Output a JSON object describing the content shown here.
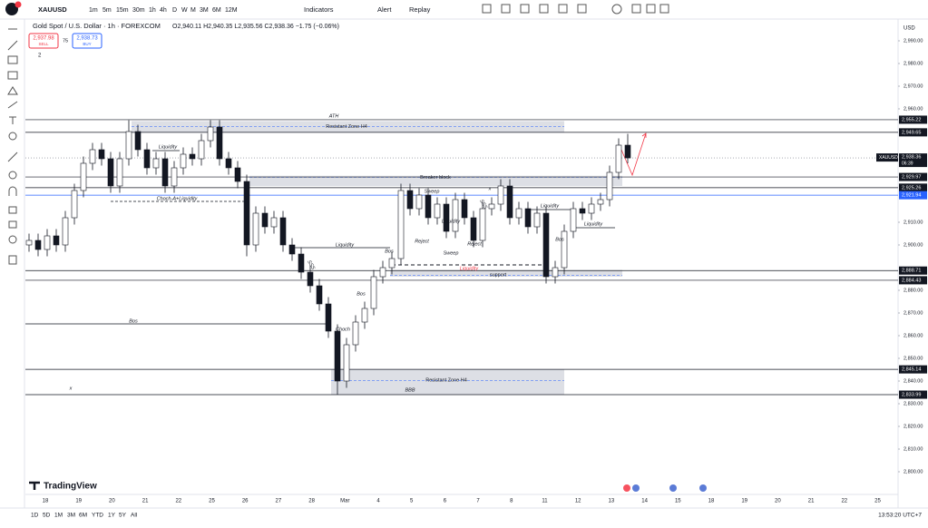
{
  "toolbar": {
    "symbol": "XAUUSD",
    "intervals": [
      "1m",
      "5m",
      "15m",
      "30m",
      "1h",
      "4h",
      "D",
      "W",
      "M",
      "3M",
      "6M",
      "12M"
    ],
    "indicators": "Indicators",
    "alert": "Alert",
    "replay": "Replay"
  },
  "legend": {
    "title": "Gold Spot / U.S. Dollar · 1h · FOREXCOM",
    "ohlc": "O2,940.11 H2,940.35 L2,935.56 C2,938.36 −1.75 (−0.06%)",
    "sell_price": "2,937.98",
    "sell": "SELL",
    "spread": "75",
    "buy_price": "2,938.73",
    "buy": "BUY",
    "indicator_count": "2"
  },
  "chart_data": {
    "type": "candlestick",
    "currency": "USD",
    "categories": [
      "18",
      "19",
      "20",
      "21",
      "22",
      "25",
      "26",
      "27",
      "28",
      "Mar",
      "4",
      "5",
      "6",
      "7",
      "8",
      "11",
      "12",
      "13",
      "14",
      "15",
      "18",
      "19",
      "20",
      "21",
      "22",
      "25"
    ],
    "up_color": "#ffffff",
    "down_color": "#131722",
    "candles": [
      [
        2900,
        2905,
        2897,
        2902
      ],
      [
        2902,
        2905,
        2895,
        2898
      ],
      [
        2898,
        2907,
        2895,
        2904
      ],
      [
        2904,
        2907,
        2897,
        2900
      ],
      [
        2900,
        2915,
        2897,
        2912
      ],
      [
        2912,
        2927,
        2909,
        2924
      ],
      [
        2924,
        2939,
        2921,
        2936
      ],
      [
        2936,
        2945,
        2933,
        2942
      ],
      [
        2942,
        2945,
        2935,
        2938
      ],
      [
        2938,
        2941,
        2923,
        2926
      ],
      [
        2926,
        2941,
        2923,
        2938
      ],
      [
        2938,
        2955,
        2935,
        2950
      ],
      [
        2950,
        2953,
        2939,
        2942
      ],
      [
        2942,
        2945,
        2931,
        2934
      ],
      [
        2934,
        2941,
        2931,
        2938
      ],
      [
        2938,
        2941,
        2923,
        2926
      ],
      [
        2926,
        2937,
        2923,
        2934
      ],
      [
        2934,
        2943,
        2931,
        2940
      ],
      [
        2940,
        2943,
        2935,
        2938
      ],
      [
        2938,
        2949,
        2935,
        2946
      ],
      [
        2946,
        2955,
        2943,
        2952
      ],
      [
        2952,
        2955,
        2935,
        2938
      ],
      [
        2938,
        2941,
        2931,
        2934
      ],
      [
        2934,
        2937,
        2925,
        2928
      ],
      [
        2928,
        2931,
        2895,
        2900
      ],
      [
        2900,
        2917,
        2897,
        2914
      ],
      [
        2914,
        2917,
        2905,
        2908
      ],
      [
        2908,
        2915,
        2905,
        2912
      ],
      [
        2912,
        2915,
        2897,
        2900
      ],
      [
        2900,
        2903,
        2893,
        2896
      ],
      [
        2896,
        2899,
        2885,
        2888
      ],
      [
        2888,
        2891,
        2879,
        2882
      ],
      [
        2882,
        2885,
        2871,
        2874
      ],
      [
        2874,
        2877,
        2859,
        2862
      ],
      [
        2862,
        2865,
        2834,
        2840
      ],
      [
        2840,
        2859,
        2837,
        2856
      ],
      [
        2856,
        2869,
        2853,
        2866
      ],
      [
        2866,
        2875,
        2863,
        2872
      ],
      [
        2872,
        2889,
        2869,
        2886
      ],
      [
        2886,
        2893,
        2883,
        2890
      ],
      [
        2890,
        2897,
        2887,
        2894
      ],
      [
        2894,
        2927,
        2891,
        2924
      ],
      [
        2924,
        2927,
        2913,
        2916
      ],
      [
        2916,
        2925,
        2913,
        2922
      ],
      [
        2922,
        2925,
        2909,
        2912
      ],
      [
        2912,
        2921,
        2909,
        2918
      ],
      [
        2918,
        2921,
        2903,
        2906
      ],
      [
        2906,
        2923,
        2903,
        2920
      ],
      [
        2920,
        2923,
        2909,
        2912
      ],
      [
        2912,
        2915,
        2899,
        2902
      ],
      [
        2902,
        2919,
        2899,
        2916
      ],
      [
        2916,
        2921,
        2913,
        2918
      ],
      [
        2918,
        2929,
        2915,
        2926
      ],
      [
        2926,
        2929,
        2909,
        2912
      ],
      [
        2912,
        2919,
        2909,
        2916
      ],
      [
        2916,
        2919,
        2905,
        2908
      ],
      [
        2908,
        2917,
        2905,
        2914
      ],
      [
        2914,
        2917,
        2883,
        2886
      ],
      [
        2886,
        2893,
        2883,
        2890
      ],
      [
        2890,
        2909,
        2887,
        2906
      ],
      [
        2906,
        2919,
        2903,
        2916
      ],
      [
        2916,
        2919,
        2911,
        2914
      ],
      [
        2914,
        2921,
        2911,
        2918
      ],
      [
        2918,
        2923,
        2915,
        2920
      ],
      [
        2920,
        2935,
        2917,
        2932
      ],
      [
        2932,
        2947,
        2929,
        2944
      ],
      [
        2944,
        2949,
        2936,
        2938.36
      ]
    ],
    "ylim": [
      2790,
      2999.2
    ],
    "yticks": [
      {
        "value": 2990,
        "label": "2,990.00"
      },
      {
        "value": 2980,
        "label": "2,980.00"
      },
      {
        "value": 2970,
        "label": "2,970.00"
      },
      {
        "value": 2960,
        "label": "2,960.00"
      },
      {
        "value": 2910,
        "label": "2,910.00"
      },
      {
        "value": 2900,
        "label": "2,900.00"
      },
      {
        "value": 2880,
        "label": "2,880.00"
      },
      {
        "value": 2870,
        "label": "2,870.00"
      },
      {
        "value": 2860,
        "label": "2,860.00"
      },
      {
        "value": 2850,
        "label": "2,850.00"
      },
      {
        "value": 2840,
        "label": "2,840.00"
      },
      {
        "value": 2830,
        "label": "2,830.00"
      },
      {
        "value": 2820,
        "label": "2,820.00"
      },
      {
        "value": 2810,
        "label": "2,810.00"
      },
      {
        "value": 2800,
        "label": "2,800.00"
      }
    ],
    "levels": [
      {
        "value": 2955.22,
        "label": "2,955.22",
        "color": "#131722"
      },
      {
        "value": 2949.65,
        "label": "2,949.65",
        "color": "#131722"
      },
      {
        "value": 2929.97,
        "label": "2,929.97",
        "color": "#131722"
      },
      {
        "value": 2925.26,
        "label": "2,925.26",
        "color": "#131722"
      },
      {
        "value": 2921.94,
        "label": "2,921.94",
        "color": "#2962ff"
      },
      {
        "value": 2888.71,
        "label": "2,888.71",
        "color": "#131722"
      },
      {
        "value": 2884.43,
        "label": "2,884.43",
        "color": "#131722"
      },
      {
        "value": 2845.14,
        "label": "2,845.14",
        "color": "#131722"
      },
      {
        "value": 2833.99,
        "label": "2,833.99",
        "color": "#131722"
      }
    ],
    "last_price_symbol": "XAUUSD",
    "last_price": {
      "value": 2938.36,
      "label": "2,938.36"
    },
    "countdown": "06:39",
    "zones": [
      {
        "top": 2954.6,
        "bottom": 2949.8,
        "label": "Resistant Zone H4"
      },
      {
        "top": 2930.5,
        "bottom": 2926,
        "label": "Breaker block"
      },
      {
        "top": 2889,
        "bottom": 2886,
        "label": "support"
      },
      {
        "top": 2845,
        "bottom": 2834,
        "label": "Resistant Zone H4"
      }
    ],
    "annotations": [
      "ATH",
      "Liquidity",
      "Choch-A+Liquidity",
      "Liquidity",
      "SSS",
      "Bos",
      "Bos",
      "Choch",
      "Bos",
      "Sweep",
      "Liquidity",
      "SSS",
      "Reject",
      "Sweep",
      "Reject",
      "Liquidity",
      "Liquidity",
      "Bos",
      "Liquidity",
      "BBB",
      "x",
      "x"
    ]
  },
  "footer": {
    "ranges": [
      "1D",
      "5D",
      "1M",
      "3M",
      "6M",
      "YTD",
      "1Y",
      "5Y",
      "All"
    ],
    "clock": "13:53:20 UTC+7",
    "brand": "TradingView"
  }
}
